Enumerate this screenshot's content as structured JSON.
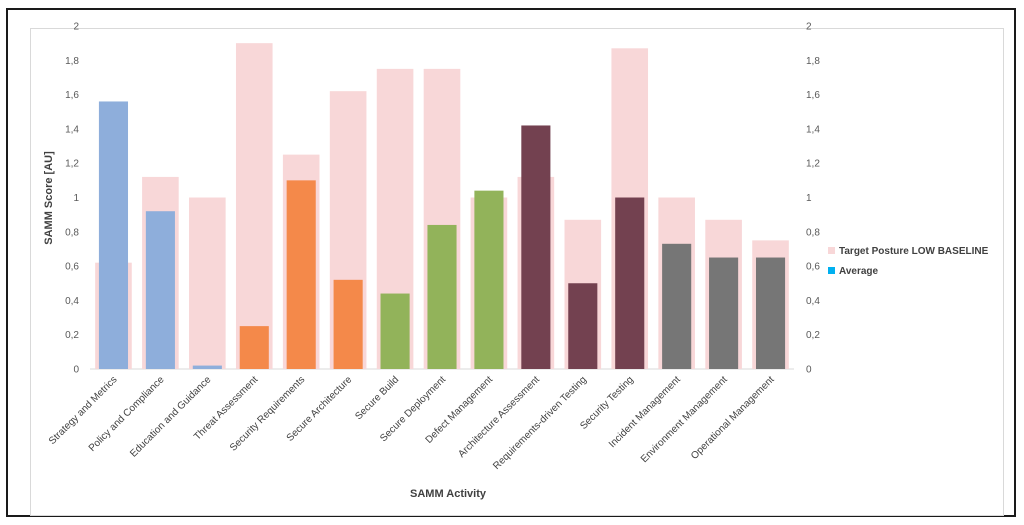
{
  "chart_data": {
    "type": "bar",
    "title": "",
    "xlabel": "SAMM Activity",
    "ylabel": "SAMM Score [AU]",
    "ylim": [
      0,
      2
    ],
    "yticks": [
      "0",
      "0,2",
      "0,4",
      "0,6",
      "0,8",
      "1",
      "1,2",
      "1,4",
      "1,6",
      "1,8",
      "2"
    ],
    "categories": [
      "Strategy and Metrics",
      "Policy and Compliance",
      "Education and Guidance",
      "Threat Assessment",
      "Security Requirements",
      "Secure Architecture",
      "Secure Build",
      "Secure Deployment",
      "Defect Management",
      "Architecture Assessment",
      "Requirements-driven Testing",
      "Security Testing",
      "Incident Management",
      "Environment Management",
      "Operational Management"
    ],
    "series": [
      {
        "name": "Target Posture LOW BASELINE",
        "color": "#f8d7d8",
        "values": [
          0.62,
          1.12,
          1.0,
          1.9,
          1.25,
          1.62,
          1.75,
          1.75,
          1.0,
          1.12,
          0.87,
          1.87,
          1.0,
          0.87,
          0.75
        ]
      },
      {
        "name": "Average",
        "color": "#00b0f0",
        "values": [
          1.56,
          0.92,
          0.02,
          0.25,
          1.1,
          0.52,
          0.44,
          0.84,
          1.04,
          1.42,
          0.5,
          1.0,
          0.73,
          0.65,
          0.65
        ],
        "bar_colors": [
          "#8eaedb",
          "#8eaedb",
          "#8eaedb",
          "#f4894a",
          "#f4894a",
          "#f4894a",
          "#92b35a",
          "#92b35a",
          "#92b35a",
          "#734150",
          "#734150",
          "#734150",
          "#767676",
          "#767676",
          "#767676"
        ]
      }
    ],
    "grid": false,
    "legend_position": "right"
  }
}
